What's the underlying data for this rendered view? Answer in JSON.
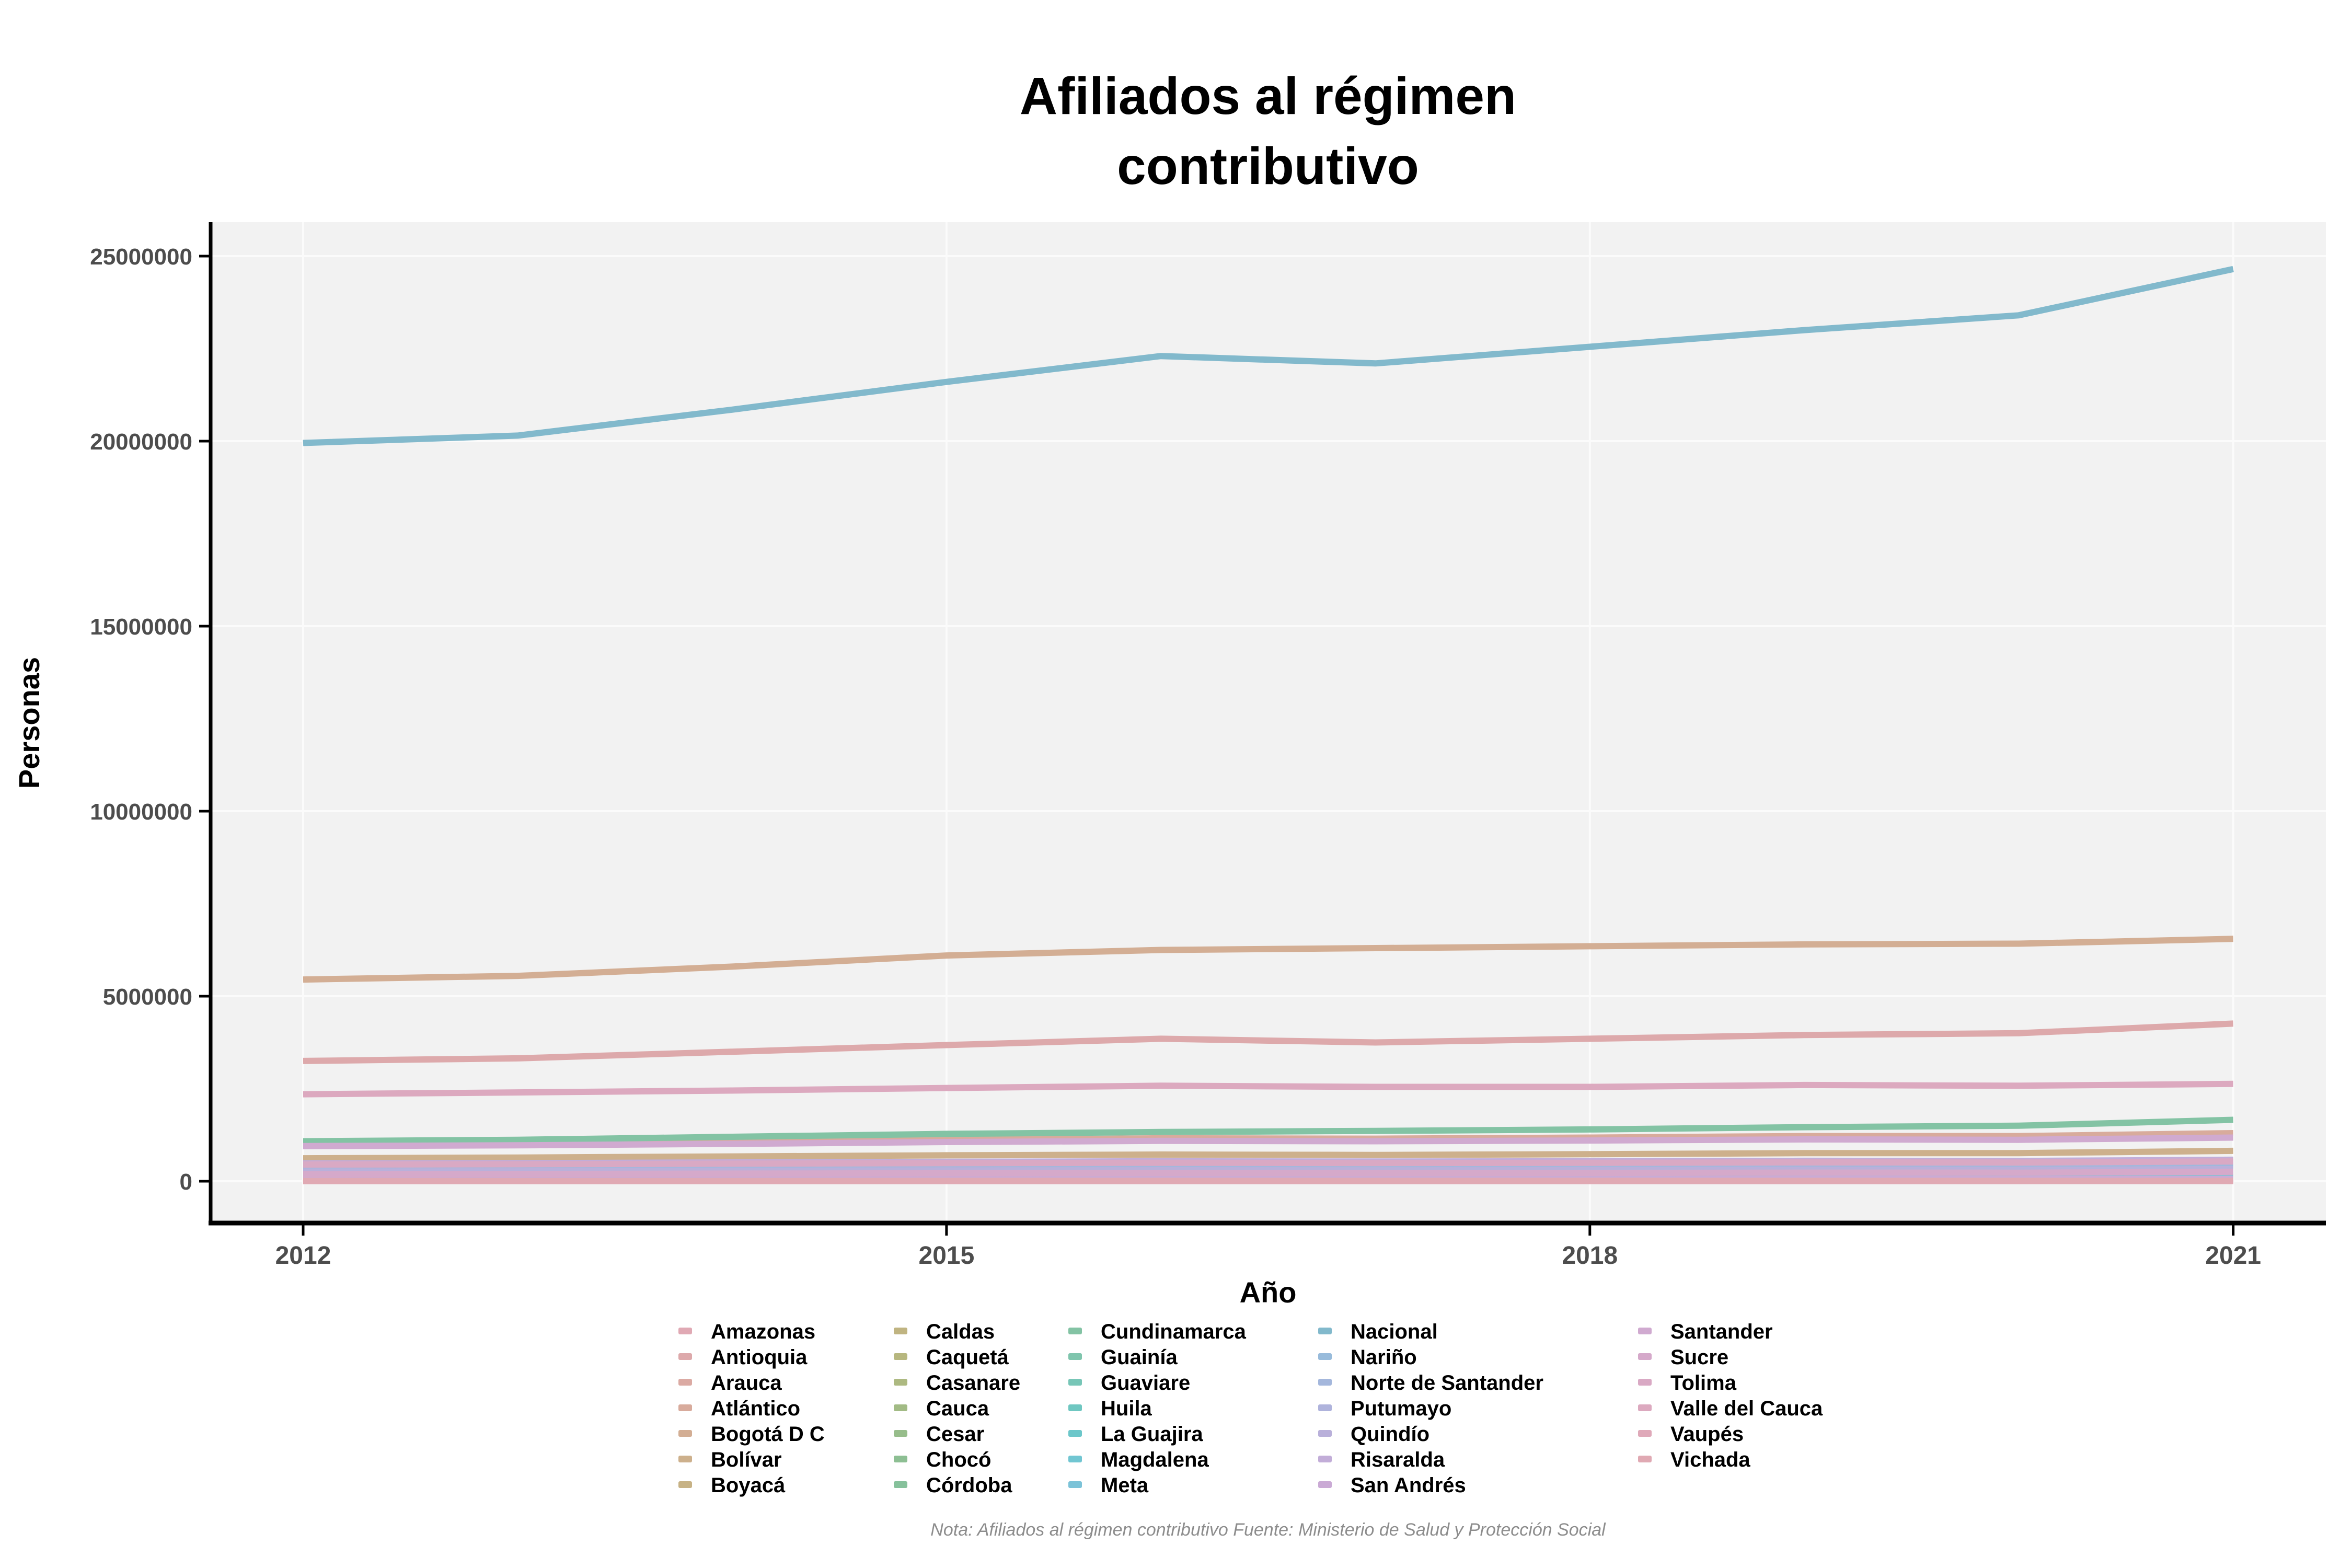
{
  "chart_data": {
    "type": "line",
    "title_line1": "Afiliados al régimen",
    "title_line2": "contributivo",
    "xlabel": "Año",
    "ylabel": "Personas",
    "note": "Nota: Afiliados al régimen contributivo Fuente: Ministerio de Salud y Protección Social",
    "x": [
      2012,
      2013,
      2014,
      2015,
      2016,
      2017,
      2018,
      2019,
      2020,
      2021
    ],
    "x_ticks": [
      2012,
      2015,
      2018,
      2021
    ],
    "y_ticks": [
      0,
      5000000,
      10000000,
      15000000,
      20000000,
      25000000
    ],
    "ylim": [
      0,
      25000000
    ],
    "grid": "on",
    "legend_position": "bottom",
    "legend_columns": 5,
    "panel_color": "#f2f2f2",
    "grid_color": "#fbfbfb",
    "axis_color": "#000000",
    "tick_label_color": "#4d4d4d",
    "series": [
      {
        "name": "Amazonas",
        "color": "#e0a9b4",
        "values": [
          20000,
          20500,
          21500,
          22500,
          23000,
          22800,
          23200,
          23800,
          23500,
          25000
        ]
      },
      {
        "name": "Antioquia",
        "color": "#dda9ab",
        "values": [
          3250000,
          3320000,
          3500000,
          3680000,
          3850000,
          3750000,
          3850000,
          3950000,
          4000000,
          4260000
        ]
      },
      {
        "name": "Arauca",
        "color": "#dbaaa3",
        "values": [
          45000,
          46500,
          49000,
          51500,
          53000,
          52000,
          53000,
          55000,
          55500,
          60000
        ]
      },
      {
        "name": "Atlántico",
        "color": "#d8ab9c",
        "values": [
          1000000,
          1020000,
          1060000,
          1120000,
          1160000,
          1150000,
          1180000,
          1220000,
          1220000,
          1300000
        ]
      },
      {
        "name": "Bogotá D C",
        "color": "#d3ae94",
        "values": [
          5450000,
          5550000,
          5800000,
          6100000,
          6250000,
          6300000,
          6350000,
          6400000,
          6420000,
          6550000
        ]
      },
      {
        "name": "Bolívar",
        "color": "#cdb08c",
        "values": [
          620000,
          640000,
          670000,
          700000,
          720000,
          710000,
          730000,
          760000,
          760000,
          820000
        ]
      },
      {
        "name": "Boyacá",
        "color": "#c7b285",
        "values": [
          380000,
          390000,
          410000,
          430000,
          440000,
          440000,
          450000,
          460000,
          460000,
          500000
        ]
      },
      {
        "name": "Caldas",
        "color": "#c0b481",
        "values": [
          420000,
          430000,
          445000,
          460000,
          470000,
          465000,
          470000,
          480000,
          478000,
          510000
        ]
      },
      {
        "name": "Caquetá",
        "color": "#b7b77f",
        "values": [
          90000,
          92000,
          97000,
          101000,
          103000,
          101000,
          103000,
          106000,
          105000,
          113000
        ]
      },
      {
        "name": "Casanare",
        "color": "#adb981",
        "values": [
          130000,
          136000,
          145000,
          155000,
          158000,
          152000,
          156000,
          160000,
          158000,
          175000
        ]
      },
      {
        "name": "Cauca",
        "color": "#a2bb85",
        "values": [
          280000,
          290000,
          308000,
          325000,
          335000,
          338000,
          348000,
          358000,
          360000,
          395000
        ]
      },
      {
        "name": "Cesar",
        "color": "#97bd8b",
        "values": [
          330000,
          340000,
          358000,
          375000,
          388000,
          385000,
          395000,
          408000,
          408000,
          448000
        ]
      },
      {
        "name": "Chocó",
        "color": "#8dbf93",
        "values": [
          78000,
          80000,
          85000,
          90000,
          94000,
          92000,
          95000,
          98000,
          97000,
          107000
        ]
      },
      {
        "name": "Córdoba",
        "color": "#86c19b",
        "values": [
          320000,
          330000,
          348000,
          368000,
          380000,
          378000,
          388000,
          398000,
          398000,
          438000
        ]
      },
      {
        "name": "Cundinamarca",
        "color": "#83c3a4",
        "values": [
          1080000,
          1120000,
          1200000,
          1280000,
          1330000,
          1360000,
          1400000,
          1460000,
          1500000,
          1660000
        ]
      },
      {
        "name": "Guainía",
        "color": "#7fc5ad",
        "values": [
          7500,
          7800,
          8300,
          8800,
          9000,
          8900,
          9200,
          9500,
          9400,
          10500
        ]
      },
      {
        "name": "Guaviare",
        "color": "#77c6b7",
        "values": [
          14000,
          14500,
          15500,
          16500,
          17000,
          16700,
          17200,
          17800,
          17500,
          19500
        ]
      },
      {
        "name": "Huila",
        "color": "#6fc7c1",
        "values": [
          330000,
          340000,
          356000,
          372000,
          382000,
          378000,
          386000,
          396000,
          394000,
          428000
        ]
      },
      {
        "name": "La Guajira",
        "color": "#6cc7ca",
        "values": [
          170000,
          176000,
          185000,
          194000,
          199000,
          197000,
          201000,
          206000,
          204000,
          220000
        ]
      },
      {
        "name": "Magdalena",
        "color": "#71c6d2",
        "values": [
          330000,
          341000,
          359000,
          377000,
          389000,
          386000,
          396000,
          409000,
          409000,
          450000
        ]
      },
      {
        "name": "Meta",
        "color": "#7cc3d8",
        "values": [
          420000,
          437000,
          458000,
          476000,
          484000,
          472000,
          482000,
          492000,
          488000,
          520000
        ]
      },
      {
        "name": "Nacional",
        "color": "#82b9cc",
        "values": [
          19950000,
          20150000,
          20850000,
          21600000,
          22300000,
          22100000,
          22550000,
          23000000,
          23400000,
          24650000
        ]
      },
      {
        "name": "Nariño",
        "color": "#98bbdb",
        "values": [
          300000,
          310000,
          326000,
          342000,
          352000,
          350000,
          358000,
          368000,
          368000,
          405000
        ]
      },
      {
        "name": "Norte de Santander",
        "color": "#a4b7dc",
        "values": [
          400000,
          410000,
          428000,
          446000,
          456000,
          454000,
          464000,
          476000,
          474000,
          516000
        ]
      },
      {
        "name": "Putumayo",
        "color": "#afb3dc",
        "values": [
          50000,
          52000,
          55000,
          58000,
          60000,
          59000,
          61000,
          63000,
          62000,
          70000
        ]
      },
      {
        "name": "Quindío",
        "color": "#b9b0da",
        "values": [
          260000,
          267000,
          278000,
          289000,
          296000,
          292000,
          298000,
          306000,
          304000,
          328000
        ]
      },
      {
        "name": "Risaralda",
        "color": "#c2add8",
        "values": [
          480000,
          490000,
          508000,
          526000,
          538000,
          532000,
          540000,
          552000,
          548000,
          580000
        ]
      },
      {
        "name": "San Andrés",
        "color": "#caaad5",
        "values": [
          48000,
          49000,
          51000,
          53000,
          55000,
          54000,
          55000,
          57000,
          56000,
          60000
        ]
      },
      {
        "name": "Santander",
        "color": "#d0aad0",
        "values": [
          950000,
          970000,
          1010000,
          1060000,
          1090000,
          1080000,
          1100000,
          1130000,
          1120000,
          1180000
        ]
      },
      {
        "name": "Sucre",
        "color": "#d5a9ca",
        "values": [
          190000,
          196000,
          206000,
          216000,
          222000,
          219000,
          224000,
          231000,
          230000,
          255000
        ]
      },
      {
        "name": "Tolima",
        "color": "#d9a9c4",
        "values": [
          450000,
          459000,
          474000,
          489000,
          498000,
          492000,
          499000,
          509000,
          505000,
          535000
        ]
      },
      {
        "name": "Valle del Cauca",
        "color": "#dca9bf",
        "values": [
          2350000,
          2400000,
          2450000,
          2520000,
          2580000,
          2550000,
          2550000,
          2600000,
          2580000,
          2630000
        ]
      },
      {
        "name": "Vaupés",
        "color": "#dfa9b9",
        "values": [
          3800,
          3900,
          4100,
          4300,
          4400,
          4350,
          4450,
          4600,
          4550,
          5000
        ]
      },
      {
        "name": "Vichada",
        "color": "#e0a9b3",
        "values": [
          8000,
          8300,
          8800,
          9300,
          9500,
          9400,
          9700,
          10000,
          9900,
          11000
        ]
      }
    ]
  }
}
